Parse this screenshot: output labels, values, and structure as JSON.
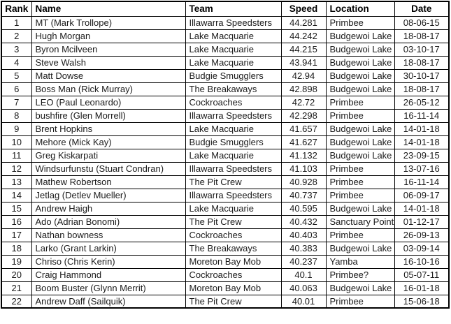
{
  "colors": {
    "rank_highlight_bg": "#c6efce",
    "rank_highlight_text": "#006100",
    "location_green_bg": "#c4d79b",
    "location_blue_bg": "#95b3d7",
    "grid_border": "#000000"
  },
  "table": {
    "columns": [
      {
        "key": "rank",
        "label": "Rank"
      },
      {
        "key": "name",
        "label": "Name"
      },
      {
        "key": "team",
        "label": "Team"
      },
      {
        "key": "speed",
        "label": "Speed"
      },
      {
        "key": "location",
        "label": "Location"
      },
      {
        "key": "date",
        "label": "Date"
      }
    ],
    "rows": [
      {
        "rank": "1",
        "name": "MT (Mark Trollope)",
        "team": "Illawarra Speedsters",
        "speed": "44.281",
        "location": "Primbee",
        "date": "08-06-15",
        "rank_highlight": true,
        "location_highlight": "green"
      },
      {
        "rank": "2",
        "name": "Hugh Morgan",
        "team": "Lake Macquarie",
        "speed": "44.242",
        "location": "Budgewoi Lake",
        "date": "18-08-17",
        "rank_highlight": true,
        "location_highlight": "blue"
      },
      {
        "rank": "3",
        "name": "Byron Mcilveen",
        "team": "Lake Macquarie",
        "speed": "44.215",
        "location": "Budgewoi Lake",
        "date": "03-10-17",
        "rank_highlight": true,
        "location_highlight": "blue"
      },
      {
        "rank": "4",
        "name": "Steve Walsh",
        "team": "Lake Macquarie",
        "speed": "43.941",
        "location": "Budgewoi Lake",
        "date": "18-08-17",
        "rank_highlight": true,
        "location_highlight": "blue"
      },
      {
        "rank": "5",
        "name": "Matt Dowse",
        "team": "Budgie Smugglers",
        "speed": "42.94",
        "location": "Budgewoi Lake",
        "date": "30-10-17",
        "rank_highlight": true,
        "location_highlight": "blue"
      },
      {
        "rank": "6",
        "name": "Boss Man (Rick Murray)",
        "team": "The Breakaways",
        "speed": "42.898",
        "location": "Budgewoi Lake",
        "date": "18-08-17",
        "rank_highlight": false,
        "location_highlight": "blue"
      },
      {
        "rank": "7",
        "name": "LEO (Paul Leonardo)",
        "team": "Cockroaches",
        "speed": "42.72",
        "location": "Primbee",
        "date": "26-05-12",
        "rank_highlight": false,
        "location_highlight": "green"
      },
      {
        "rank": "8",
        "name": "bushfire (Glen Morrell)",
        "team": "Illawarra Speedsters",
        "speed": "42.298",
        "location": "Primbee",
        "date": "16-11-14",
        "rank_highlight": true,
        "location_highlight": "green"
      },
      {
        "rank": "9",
        "name": "Brent Hopkins",
        "team": "Lake Macquarie",
        "speed": "41.657",
        "location": "Budgewoi Lake",
        "date": "14-01-18",
        "rank_highlight": true,
        "location_highlight": "blue"
      },
      {
        "rank": "10",
        "name": "Mehore (Mick Kay)",
        "team": "Budgie Smugglers",
        "speed": "41.627",
        "location": "Budgewoi Lake",
        "date": "14-01-18",
        "rank_highlight": true,
        "location_highlight": "blue"
      },
      {
        "rank": "11",
        "name": "Greg Kiskarpati",
        "team": "Lake Macquarie",
        "speed": "41.132",
        "location": "Budgewoi Lake",
        "date": "23-09-15",
        "rank_highlight": false,
        "location_highlight": "blue"
      },
      {
        "rank": "12",
        "name": "Windsurfunstu (Stuart Condran)",
        "team": "Illawarra Speedsters",
        "speed": "41.103",
        "location": "Primbee",
        "date": "13-07-16",
        "rank_highlight": true,
        "location_highlight": "green"
      },
      {
        "rank": "13",
        "name": "Mathew Robertson",
        "team": "The Pit Crew",
        "speed": "40.928",
        "location": "Primbee",
        "date": "16-11-14",
        "rank_highlight": false,
        "location_highlight": "green"
      },
      {
        "rank": "14",
        "name": "Jetlag (Detlev Mueller)",
        "team": "Illawarra Speedsters",
        "speed": "40.737",
        "location": "Primbee",
        "date": "06-09-17",
        "rank_highlight": true,
        "location_highlight": "green"
      },
      {
        "rank": "15",
        "name": "Andrew Haigh",
        "team": "Lake Macquarie",
        "speed": "40.595",
        "location": "Budgewoi Lake",
        "date": "14-01-18",
        "rank_highlight": true,
        "location_highlight": "blue"
      },
      {
        "rank": "16",
        "name": "Ado (Adrian Bonomi)",
        "team": "The Pit Crew",
        "speed": "40.432",
        "location": "Sanctuary Point",
        "date": "01-12-17",
        "rank_highlight": true,
        "location_highlight": "none"
      },
      {
        "rank": "17",
        "name": "Nathan bowness",
        "team": "Cockroaches",
        "speed": "40.403",
        "location": "Primbee",
        "date": "26-09-13",
        "rank_highlight": false,
        "location_highlight": "green"
      },
      {
        "rank": "18",
        "name": "Larko (Grant Larkin)",
        "team": "The Breakaways",
        "speed": "40.383",
        "location": "Budgewoi Lake",
        "date": "03-09-14",
        "rank_highlight": true,
        "location_highlight": "blue"
      },
      {
        "rank": "19",
        "name": "Chriso (Chris Kerin)",
        "team": "Moreton Bay Mob",
        "speed": "40.237",
        "location": "Yamba",
        "date": "16-10-16",
        "rank_highlight": true,
        "location_highlight": "none"
      },
      {
        "rank": "20",
        "name": "Craig Hammond",
        "team": "Cockroaches",
        "speed": "40.1",
        "location": "Primbee?",
        "date": "05-07-11",
        "rank_highlight": false,
        "location_highlight": "green"
      },
      {
        "rank": "21",
        "name": "Boom Buster (Glynn Merrit)",
        "team": "Moreton Bay Mob",
        "speed": "40.063",
        "location": "Budgewoi Lake",
        "date": "16-01-18",
        "rank_highlight": true,
        "location_highlight": "blue"
      },
      {
        "rank": "22",
        "name": "Andrew Daff (Sailquik)",
        "team": "The Pit Crew",
        "speed": "40.01",
        "location": "Primbee",
        "date": "15-06-18",
        "rank_highlight": false,
        "location_highlight": "green"
      }
    ]
  }
}
